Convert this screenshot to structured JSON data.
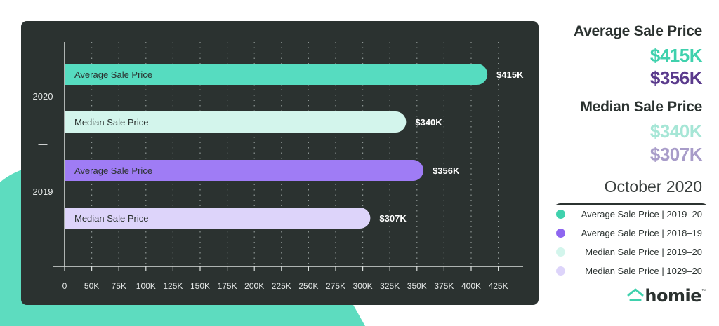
{
  "chart_data": {
    "type": "bar",
    "orientation": "horizontal",
    "group_labels": [
      "2020",
      "—",
      "2019"
    ],
    "bars": [
      {
        "label": "Average Sale Price",
        "value": 415,
        "value_label": "$415K",
        "color": "#56dcc0",
        "group": "2020"
      },
      {
        "label": "Median Sale Price",
        "value": 340,
        "value_label": "$340K",
        "color": "#d3f5ec",
        "group": "2020"
      },
      {
        "label": "Average Sale Price",
        "value": 356,
        "value_label": "$356K",
        "color": "#9f7cf5",
        "group": "2019"
      },
      {
        "label": "Median Sale Price",
        "value": 307,
        "value_label": "$307K",
        "color": "#ddd4fa",
        "group": "2019"
      }
    ],
    "x_ticks": [
      "0",
      "50K",
      "75K",
      "100K",
      "125K",
      "150K",
      "175K",
      "200K",
      "225K",
      "250K",
      "275K",
      "300K",
      "325K",
      "350K",
      "375K",
      "400K",
      "425K"
    ],
    "xlim": [
      0,
      425
    ],
    "grid": "vertical-dotted",
    "xlabel": "",
    "ylabel": ""
  },
  "summary": {
    "avg_heading": "Average Sale Price",
    "avg_2020": "$415K",
    "avg_2019": "$356K",
    "median_heading": "Median Sale Price",
    "median_2020": "$340K",
    "median_2019": "$307K",
    "period": "October 2020"
  },
  "legend": [
    {
      "text": "Average Sale Price  |  2019–20",
      "color": "#3fd1ad"
    },
    {
      "text": "Average Sale Price  |  2018–19",
      "color": "#8e66f0"
    },
    {
      "text": "Median Sale Price | 2019–20",
      "color": "#d3f5ec"
    },
    {
      "text": "Median Sale Price | 1029–20",
      "color": "#ddd4fa"
    }
  ],
  "colors": {
    "teal": "#3fd1ad",
    "purple": "#5a3a8c",
    "light_teal": "#a6e6d6",
    "light_purple": "#a89cc9",
    "panel": "#2b3230",
    "brand": "#3fd1ad"
  },
  "brand": {
    "name": "homie",
    "tm": "™",
    "icon": "home-icon"
  }
}
